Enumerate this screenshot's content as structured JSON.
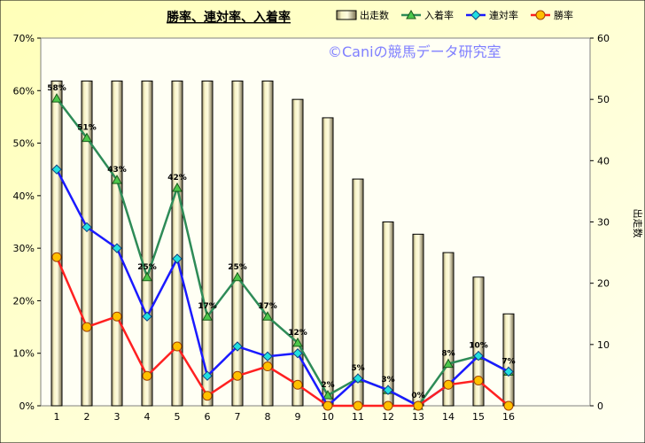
{
  "chart_data": {
    "type": "bar",
    "title": "勝率、連対率、入着率",
    "watermark": "©Caniの競馬データ研究室",
    "categories": [
      "1",
      "2",
      "3",
      "4",
      "5",
      "6",
      "7",
      "8",
      "9",
      "10",
      "11",
      "12",
      "13",
      "14",
      "15",
      "16"
    ],
    "ylim_left": [
      0,
      70
    ],
    "ylim_right": [
      0,
      60
    ],
    "yticks_left": [
      "0%",
      "10%",
      "20%",
      "30%",
      "40%",
      "50%",
      "60%",
      "70%"
    ],
    "yticks_right": [
      "0",
      "10",
      "20",
      "30",
      "40",
      "50",
      "60"
    ],
    "ylabel_right": "出走数",
    "legend_position": "top",
    "grid": false,
    "series": [
      {
        "name": "出走数",
        "kind": "bar",
        "axis": "right",
        "color": "#f0ecb4",
        "values": [
          53,
          53,
          53,
          53,
          53,
          53,
          53,
          53,
          50,
          47,
          37,
          30,
          28,
          25,
          21,
          15
        ]
      },
      {
        "name": "入着率",
        "kind": "line",
        "axis": "left",
        "color": "#2e8b57",
        "marker": "triangle",
        "values": [
          58.5,
          51,
          43,
          24.5,
          41.5,
          17,
          24.5,
          17,
          12,
          2,
          5.2,
          3,
          0,
          8,
          9.5,
          6.5
        ],
        "labels": [
          "58%",
          "51%",
          "43%",
          "25%",
          "42%",
          "17%",
          "25%",
          "17%",
          "12%",
          "2%",
          "5%",
          "3%",
          "0%",
          "8%",
          "10%",
          "7%"
        ]
      },
      {
        "name": "連対率",
        "kind": "line",
        "axis": "left",
        "color": "#1a1aff",
        "marker": "diamond",
        "values": [
          45,
          34,
          30,
          17,
          28,
          5.7,
          11.3,
          9.4,
          10,
          0,
          5.2,
          3,
          0,
          4,
          9.5,
          6.5
        ]
      },
      {
        "name": "勝率",
        "kind": "line",
        "axis": "left",
        "color": "#ff2020",
        "marker": "circle",
        "values": [
          28.3,
          15,
          17,
          5.7,
          11.3,
          1.9,
          5.7,
          7.5,
          4,
          0,
          0,
          0,
          0,
          4,
          4.8,
          0
        ]
      }
    ]
  }
}
